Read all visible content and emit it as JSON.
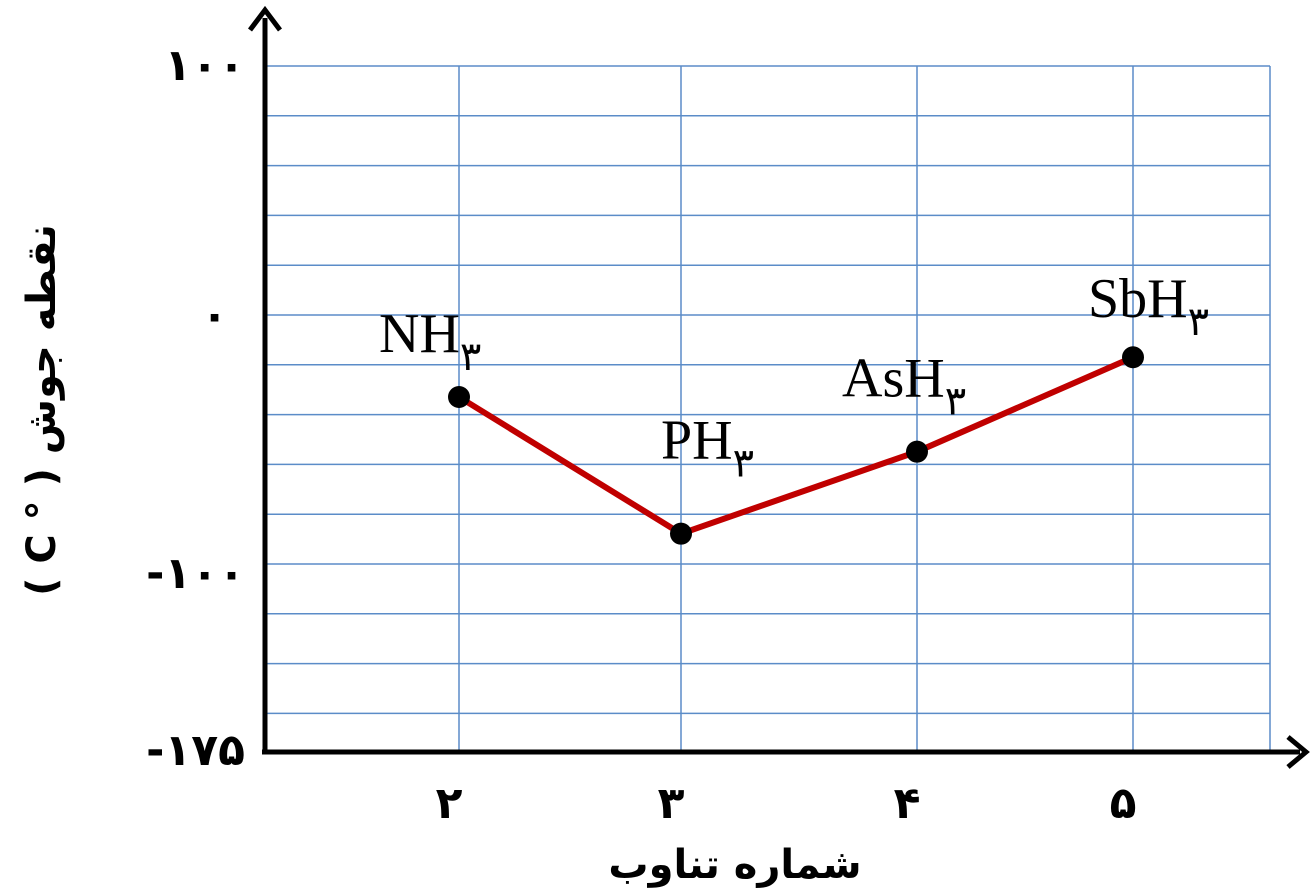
{
  "chart_data": {
    "type": "line",
    "xlabel": "شماره تناوب",
    "ylabel": "( C ° ) نقطه جوش",
    "x_ticks": [
      "۲",
      "۳",
      "۴",
      "۵"
    ],
    "y_ticks": [
      "۱۰۰",
      "۰",
      "-۱۰۰",
      "-۱۷۵"
    ],
    "ylim": [
      -175,
      100
    ],
    "x_values": [
      2,
      3,
      4,
      5
    ],
    "grid": true,
    "series": [
      {
        "color": "#c00000",
        "points": [
          {
            "x": 2,
            "y": -33,
            "label": "NH",
            "sub": "۳"
          },
          {
            "x": 3,
            "y": -88,
            "label": "PH",
            "sub": "۳"
          },
          {
            "x": 4,
            "y": -55,
            "label": "AsH",
            "sub": "۳"
          },
          {
            "x": 5,
            "y": -17,
            "label": "SbH",
            "sub": "۳"
          }
        ]
      }
    ]
  }
}
